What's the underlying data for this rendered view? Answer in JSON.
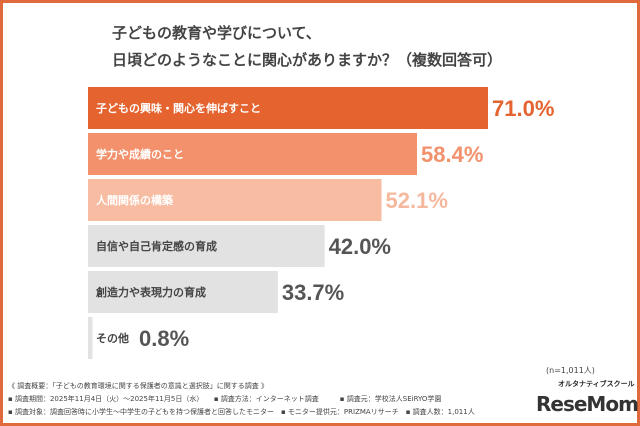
{
  "title": {
    "line1": "子どもの教育や学びについて、",
    "line2": "日頃どのようなことに関心がありますか？（複数回答可）"
  },
  "chart_data": {
    "type": "bar",
    "orientation": "horizontal",
    "categories": [
      "子どもの興味・関心を伸ばすこと",
      "学力や成績のこと",
      "人間関係の構築",
      "自信や自己肯定感の育成",
      "創造力や表現力の育成",
      "その他"
    ],
    "values": [
      71.0,
      58.4,
      52.1,
      42.0,
      33.7,
      0.8
    ],
    "value_labels": [
      "71.0%",
      "58.4%",
      "52.1%",
      "42.0%",
      "33.7%",
      "0.8%"
    ],
    "bar_colors": [
      "#e4632f",
      "#f2916b",
      "#f8bca2",
      "#e2e2e2",
      "#e2e2e2",
      "#e2e2e2"
    ],
    "label_colors": [
      "#ffffff",
      "#ffffff",
      "#ffffff",
      "#444444",
      "#444444",
      "#444444"
    ],
    "value_colors": [
      "#e4632f",
      "#f2916b",
      "#f6b89c",
      "#555555",
      "#555555",
      "#555555"
    ],
    "xlim": [
      0,
      71
    ]
  },
  "sample": "(n=1,011人)",
  "notes": [
    "《 調査概要：「子どもの教育環境に関する保護者の意識と選択肢」に関する調査 》",
    "▪ 調査期間：2025年11月4日（火）～2025年11月5日（水）　　▪ 調査方法：インターネット調査　　　▪ 調査元：学校法人SEiRYO学園",
    "▪ 調査対象：調査回答時に小学生～中学生の子どもを持つ保護者と回答したモニター　▪ モニター提供元：PRIZMAリサーチ　▪ 調査人数：1,011人"
  ],
  "logo": {
    "sub": "オルタナティブスクール",
    "main": "ReseMom"
  }
}
